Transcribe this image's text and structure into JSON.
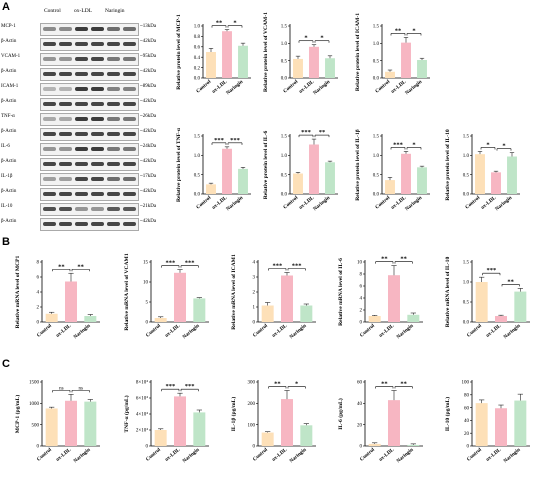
{
  "panel_letters": {
    "a": "A",
    "b": "B",
    "c": "C"
  },
  "blot": {
    "lane_headers": [
      "Control",
      "ox-LDL",
      "Naringin"
    ],
    "rows": [
      {
        "protein": "MCP-1",
        "kda": "~13kDa",
        "intensity": [
          0.45,
          0.85,
          0.6
        ]
      },
      {
        "protein": "β-Actin",
        "kda": "~42kDa",
        "intensity": [
          0.8,
          0.8,
          0.8
        ]
      },
      {
        "protein": "VCAM-1",
        "kda": "~95kDa",
        "intensity": [
          0.4,
          0.8,
          0.55
        ]
      },
      {
        "protein": "β-Actin",
        "kda": "~42kDa",
        "intensity": [
          0.8,
          0.8,
          0.8
        ]
      },
      {
        "protein": "ICAM-1",
        "kda": "~89kDa",
        "intensity": [
          0.25,
          0.85,
          0.5
        ]
      },
      {
        "protein": "β-Actin",
        "kda": "~42kDa",
        "intensity": [
          0.8,
          0.8,
          0.8
        ]
      },
      {
        "protein": "TNF-α",
        "kda": "~26kDa",
        "intensity": [
          0.3,
          0.85,
          0.55
        ]
      },
      {
        "protein": "β-Actin",
        "kda": "~42kDa",
        "intensity": [
          0.8,
          0.8,
          0.8
        ]
      },
      {
        "protein": "IL-6",
        "kda": "~24kDa",
        "intensity": [
          0.4,
          0.85,
          0.55
        ]
      },
      {
        "protein": "β-Actin",
        "kda": "~42kDa",
        "intensity": [
          0.8,
          0.8,
          0.8
        ]
      },
      {
        "protein": "IL-1β",
        "kda": "~17kDa",
        "intensity": [
          0.35,
          0.8,
          0.6
        ]
      },
      {
        "protein": "β-Actin",
        "kda": "~42kDa",
        "intensity": [
          0.8,
          0.8,
          0.8
        ]
      },
      {
        "protein": "IL-10",
        "kda": "~21kDa",
        "intensity": [
          0.75,
          0.4,
          0.7
        ]
      },
      {
        "protein": "β-Actin",
        "kda": "~42kDa",
        "intensity": [
          0.8,
          0.8,
          0.8
        ]
      }
    ]
  },
  "colors": {
    "Control": "#fde0b8",
    "ox-LDL": "#f7b6c2",
    "Naringin": "#bfe5c8",
    "error": "#222222"
  },
  "chart_data": [
    {
      "type": "bar",
      "panel": "A",
      "categories": [
        "Control",
        "ox-LDL",
        "Naringin"
      ],
      "values": [
        0.5,
        0.9,
        0.62
      ],
      "errors": [
        0.07,
        0.03,
        0.05
      ],
      "ylabel": "Relative protein level of MCP-1",
      "ylim": [
        0,
        1.0
      ],
      "yticks": [
        "0.0",
        "0.2",
        "0.4",
        "0.6",
        "0.8",
        "1.0"
      ],
      "sig": [
        {
          "from": 0,
          "to": 1,
          "text": "**",
          "level": 0
        },
        {
          "from": 1,
          "to": 2,
          "text": "*",
          "level": 0
        }
      ]
    },
    {
      "type": "bar",
      "panel": "A",
      "categories": [
        "Control",
        "ox-LDL",
        "Naringin"
      ],
      "values": [
        0.55,
        0.9,
        0.57
      ],
      "errors": [
        0.08,
        0.06,
        0.07
      ],
      "ylabel": "Relative protein level of VCAM-1",
      "ylim": [
        0,
        1.5
      ],
      "yticks": [
        "0.0",
        "0.5",
        "1.0",
        "1.5"
      ],
      "sig": [
        {
          "from": 0,
          "to": 1,
          "text": "*",
          "level": 0
        },
        {
          "from": 1,
          "to": 2,
          "text": "*",
          "level": 0
        }
      ]
    },
    {
      "type": "bar",
      "panel": "A",
      "categories": [
        "Control",
        "ox-LDL",
        "Naringin"
      ],
      "values": [
        0.18,
        1.02,
        0.52
      ],
      "errors": [
        0.05,
        0.15,
        0.05
      ],
      "ylabel": "Relative protein level of ICAM-1",
      "ylim": [
        0,
        1.5
      ],
      "yticks": [
        "0.0",
        "0.5",
        "1.0",
        "1.5"
      ],
      "sig": [
        {
          "from": 0,
          "to": 1,
          "text": "**",
          "level": 0
        },
        {
          "from": 1,
          "to": 2,
          "text": "*",
          "level": 0
        }
      ]
    },
    {
      "type": "bar",
      "panel": "A",
      "categories": [
        "Control",
        "ox-LDL",
        "Naringin"
      ],
      "values": [
        0.25,
        1.17,
        0.65
      ],
      "errors": [
        0.03,
        0.05,
        0.04
      ],
      "ylabel": "Relative protein level of TNF-α",
      "ylim": [
        0,
        1.5
      ],
      "yticks": [
        "0.0",
        "0.5",
        "1.0",
        "1.5"
      ],
      "sig": [
        {
          "from": 0,
          "to": 1,
          "text": "***",
          "level": 0
        },
        {
          "from": 1,
          "to": 2,
          "text": "***",
          "level": 0
        }
      ]
    },
    {
      "type": "bar",
      "panel": "A",
      "categories": [
        "Control",
        "ox-LDL",
        "Naringin"
      ],
      "values": [
        0.53,
        1.28,
        0.82
      ],
      "errors": [
        0.03,
        0.14,
        0.03
      ],
      "ylabel": "Relative protein level of IL-6",
      "ylim": [
        0,
        1.5
      ],
      "yticks": [
        "0.0",
        "0.5",
        "1.0",
        "1.5"
      ],
      "sig": [
        {
          "from": 0,
          "to": 1,
          "text": "***",
          "level": 0
        },
        {
          "from": 1,
          "to": 2,
          "text": "**",
          "level": 0
        }
      ]
    },
    {
      "type": "bar",
      "panel": "A",
      "categories": [
        "Control",
        "ox-LDL",
        "Naringin"
      ],
      "values": [
        0.36,
        1.04,
        0.69
      ],
      "errors": [
        0.07,
        0.06,
        0.03
      ],
      "ylabel": "Relative protein level of IL-1β",
      "ylim": [
        0,
        1.5
      ],
      "yticks": [
        "0.0",
        "0.5",
        "1.0",
        "1.5"
      ],
      "sig": [
        {
          "from": 0,
          "to": 1,
          "text": "***",
          "level": 0
        },
        {
          "from": 1,
          "to": 2,
          "text": "*",
          "level": 0
        }
      ]
    },
    {
      "type": "bar",
      "panel": "A",
      "categories": [
        "Control",
        "ox-LDL",
        "Naringin"
      ],
      "values": [
        1.03,
        0.56,
        0.97
      ],
      "errors": [
        0.07,
        0.03,
        0.1
      ],
      "ylabel": "Relative protein level of IL-10",
      "ylim": [
        0,
        1.5
      ],
      "yticks": [
        "0.0",
        "0.5",
        "1.0",
        "1.5"
      ],
      "sig": [
        {
          "from": 0,
          "to": 1,
          "text": "*",
          "level": 0
        },
        {
          "from": 1,
          "to": 2,
          "text": "*",
          "level": 0
        }
      ]
    },
    {
      "type": "bar",
      "panel": "B",
      "categories": [
        "Control",
        "ox-LDL",
        "Naringin"
      ],
      "values": [
        1.1,
        5.4,
        0.8
      ],
      "errors": [
        0.2,
        1.1,
        0.2
      ],
      "ylabel": "Relative mRNA level of MCP1",
      "ylim": [
        0,
        8
      ],
      "yticks": [
        "0",
        "2",
        "4",
        "6",
        "8"
      ],
      "sig": [
        {
          "from": 0,
          "to": 1,
          "text": "**",
          "level": 0
        },
        {
          "from": 1,
          "to": 2,
          "text": "**",
          "level": 0
        }
      ]
    },
    {
      "type": "bar",
      "panel": "B",
      "categories": [
        "Control",
        "ox-LDL",
        "Naringin"
      ],
      "values": [
        1.0,
        12.3,
        5.9
      ],
      "errors": [
        0.3,
        0.8,
        0.2
      ],
      "ylabel": "Relative mRNA level of VCAM1",
      "ylim": [
        0,
        15
      ],
      "yticks": [
        "0",
        "5",
        "10",
        "15"
      ],
      "sig": [
        {
          "from": 0,
          "to": 1,
          "text": "***",
          "level": 0
        },
        {
          "from": 1,
          "to": 2,
          "text": "***",
          "level": 0
        }
      ]
    },
    {
      "type": "bar",
      "panel": "B",
      "categories": [
        "Control",
        "ox-LDL",
        "Naringin"
      ],
      "values": [
        1.1,
        3.1,
        1.1
      ],
      "errors": [
        0.2,
        0.2,
        0.1
      ],
      "ylabel": "Relative mRNA level of ICAM1",
      "ylim": [
        0,
        4
      ],
      "yticks": [
        "0",
        "1",
        "2",
        "3",
        "4"
      ],
      "sig": [
        {
          "from": 0,
          "to": 1,
          "text": "***",
          "level": 0
        },
        {
          "from": 1,
          "to": 2,
          "text": "***",
          "level": 0
        }
      ]
    },
    {
      "type": "bar",
      "panel": "B",
      "categories": [
        "Control",
        "ox-LDL",
        "Naringin"
      ],
      "values": [
        1.0,
        7.8,
        1.2
      ],
      "errors": [
        0.1,
        1.6,
        0.3
      ],
      "ylabel": "Relative mRNA level of IL-6",
      "ylim": [
        0,
        10
      ],
      "yticks": [
        "0",
        "2",
        "4",
        "6",
        "8",
        "10"
      ],
      "sig": [
        {
          "from": 0,
          "to": 1,
          "text": "**",
          "level": 0
        },
        {
          "from": 1,
          "to": 2,
          "text": "**",
          "level": 0
        }
      ]
    },
    {
      "type": "bar",
      "panel": "B",
      "categories": [
        "Control",
        "ox-LDL",
        "Naringin"
      ],
      "values": [
        1.0,
        0.15,
        0.76
      ],
      "errors": [
        0.12,
        0.02,
        0.08
      ],
      "ylabel": "Relative mRNA level of IL-10",
      "ylim": [
        0,
        1.5
      ],
      "yticks": [
        "0.0",
        "0.5",
        "1.0",
        "1.5"
      ],
      "sig": [
        {
          "from": 0,
          "to": 1,
          "text": "***",
          "level": 0
        },
        {
          "from": 1,
          "to": 2,
          "text": "**",
          "level": 0
        }
      ]
    },
    {
      "type": "bar",
      "panel": "C",
      "categories": [
        "Control",
        "ox-LDL",
        "Naringin"
      ],
      "values": [
        880,
        1060,
        1040
      ],
      "errors": [
        30,
        150,
        50
      ],
      "ylabel": "MCP-1 (pg/mL)",
      "ylim": [
        0,
        1500
      ],
      "yticks": [
        "0",
        "500",
        "1000",
        "1500"
      ],
      "sig": [
        {
          "from": 0,
          "to": 1,
          "text": "ns",
          "level": 0
        },
        {
          "from": 1,
          "to": 2,
          "text": "ns",
          "level": 0
        }
      ]
    },
    {
      "type": "bar",
      "panel": "C",
      "categories": [
        "Control",
        "ox-LDL",
        "Naringin"
      ],
      "values": [
        20000,
        62000,
        42000
      ],
      "errors": [
        1500,
        4000,
        3000
      ],
      "ylabel": "TNF-α (pg/mL)",
      "ylim": [
        0,
        80000
      ],
      "yticks": [
        "0",
        "2×10⁴",
        "4×10⁴",
        "6×10⁴",
        "8×10⁴"
      ],
      "sig": [
        {
          "from": 0,
          "to": 1,
          "text": "***",
          "level": 0
        },
        {
          "from": 1,
          "to": 2,
          "text": "***",
          "level": 0
        }
      ]
    },
    {
      "type": "bar",
      "panel": "C",
      "categories": [
        "Control",
        "ox-LDL",
        "Naringin"
      ],
      "values": [
        63,
        220,
        97
      ],
      "errors": [
        4,
        40,
        8
      ],
      "ylabel": "IL-1β (pg/mL)",
      "ylim": [
        0,
        300
      ],
      "yticks": [
        "0",
        "100",
        "200",
        "300"
      ],
      "sig": [
        {
          "from": 0,
          "to": 1,
          "text": "**",
          "level": 0
        },
        {
          "from": 1,
          "to": 2,
          "text": "*",
          "level": 0
        }
      ]
    },
    {
      "type": "bar",
      "panel": "C",
      "categories": [
        "Control",
        "ox-LDL",
        "Naringin"
      ],
      "values": [
        2,
        43,
        1
      ],
      "errors": [
        1,
        9,
        1
      ],
      "ylabel": "IL-6 (pg/mL)",
      "ylim": [
        0,
        60
      ],
      "yticks": [
        "0",
        "20",
        "40",
        "60"
      ],
      "sig": [
        {
          "from": 0,
          "to": 1,
          "text": "**",
          "level": 0
        },
        {
          "from": 1,
          "to": 2,
          "text": "**",
          "level": 0
        }
      ]
    },
    {
      "type": "bar",
      "panel": "C",
      "categories": [
        "Control",
        "ox-LDL",
        "Naringin"
      ],
      "values": [
        67,
        59,
        71
      ],
      "errors": [
        5,
        5,
        10
      ],
      "ylabel": "IL-10 (pg/mL)",
      "ylim": [
        0,
        100
      ],
      "yticks": [
        "0",
        "20",
        "40",
        "60",
        "80",
        "100"
      ],
      "sig": []
    }
  ]
}
